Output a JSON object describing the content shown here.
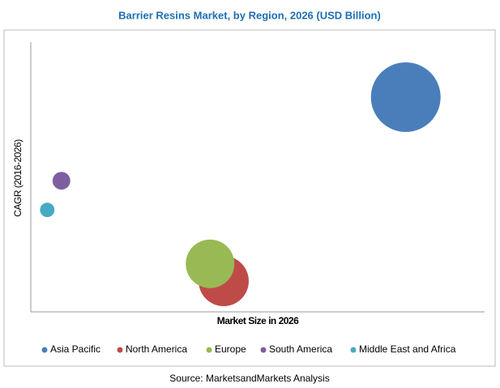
{
  "chart_data": {
    "type": "bubble",
    "title": "Barrier Resins Market, by Region, 2026 (USD Billion)",
    "x_label": "Market Size in 2026",
    "y_label": "CAGR (2016-2026)",
    "source": "Source: MarketsandMarkets Analysis",
    "xlim": [
      0,
      8
    ],
    "ylim": [
      0,
      5
    ],
    "series": [
      {
        "name": "Asia Pacific",
        "color": "#4a7ebb",
        "x": [
          6.61
        ],
        "values": [
          3.98
        ],
        "sizes": [
          185
        ]
      },
      {
        "name": "North America",
        "color": "#be4b48",
        "x": [
          3.4
        ],
        "values": [
          0.57
        ],
        "sizes": [
          96
        ]
      },
      {
        "name": "Europe",
        "color": "#98b954",
        "x": [
          3.16
        ],
        "values": [
          0.89
        ],
        "sizes": [
          90
        ]
      },
      {
        "name": "South America",
        "color": "#7d5fa0",
        "x": [
          0.54
        ],
        "values": [
          2.43
        ],
        "sizes": [
          12
        ]
      },
      {
        "name": "Middle East and Africa",
        "color": "#46aac5",
        "x": [
          0.29
        ],
        "values": [
          1.89
        ],
        "sizes": [
          8
        ]
      }
    ]
  }
}
